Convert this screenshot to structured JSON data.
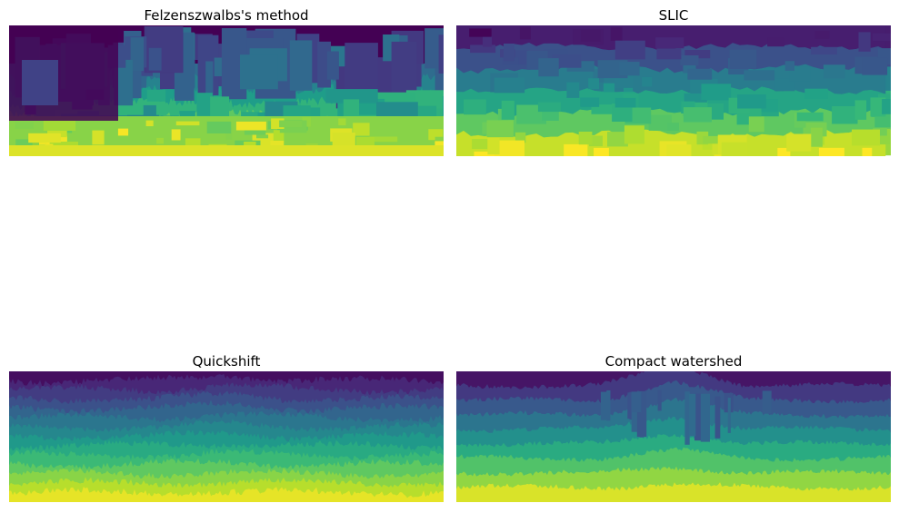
{
  "panels": [
    {
      "title": "Felzenszwalbs's method",
      "method": "felzenszwalb"
    },
    {
      "title": "SLIC",
      "method": "slic"
    },
    {
      "title": "Quickshift",
      "method": "quickshift"
    },
    {
      "title": "Compact watershed",
      "method": "watershed"
    }
  ],
  "colormap": "viridis"
}
